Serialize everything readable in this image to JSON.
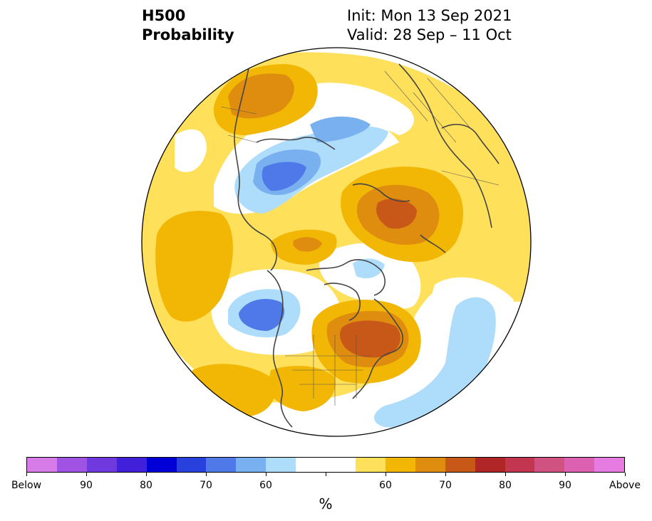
{
  "title": {
    "left_line1": "H500",
    "left_line2": "Probability",
    "right_line1": "Init: Mon 13 Sep 2021",
    "right_line2": "Valid: 28 Sep – 11 Oct"
  },
  "colorbar": {
    "colors": [
      "#d77be8",
      "#a052e2",
      "#7039de",
      "#4020d8",
      "#0000d6",
      "#2841dc",
      "#4f78e8",
      "#79b0f0",
      "#aedcfb",
      "#ffffff",
      "#ffffff",
      "#ffe05b",
      "#f2b705",
      "#df8d0f",
      "#c85818",
      "#b02525",
      "#c23650",
      "#cf5281",
      "#dc62b1",
      "#e67be2"
    ],
    "tick_labels": [
      "Below",
      "90",
      "80",
      "70",
      "60",
      "60",
      "70",
      "80",
      "90",
      "Above"
    ],
    "unit": "%"
  },
  "map": {
    "projection": "north-polar-stereographic",
    "palette": {
      "above_50": "#ffe05b",
      "above_60": "#f2b705",
      "above_70": "#df8d0f",
      "above_75": "#c85818",
      "below_55": "#aedcfb",
      "below_60": "#79b0f0",
      "below_70": "#4f78e8",
      "coast": "#444444"
    }
  }
}
